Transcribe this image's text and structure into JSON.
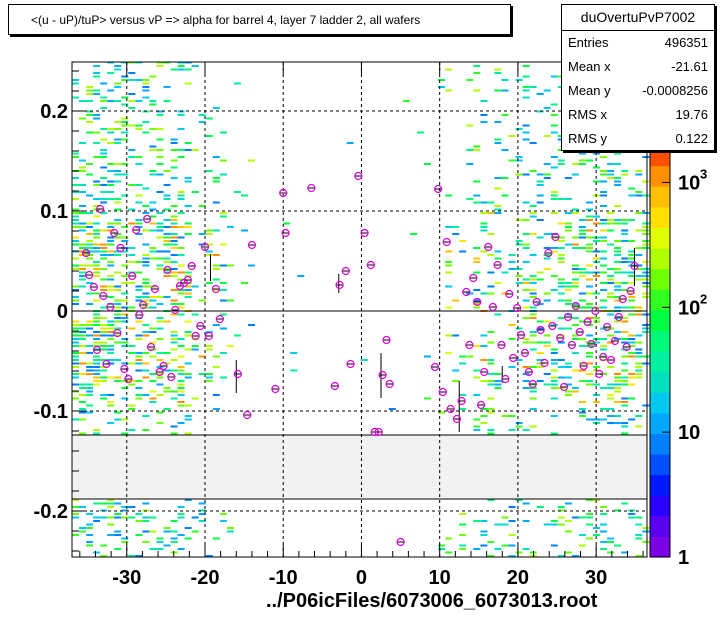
{
  "title": "<(u - uP)/tuP> versus  vP => alpha for barrel 4, layer 7 ladder 2, all wafers",
  "stats": {
    "name": "duOvertuPvP7002",
    "rows": [
      {
        "key": "Entries",
        "value": "496351"
      },
      {
        "key": "Mean x",
        "value": "-21.61"
      },
      {
        "key": "Mean y",
        "value": "-0.0008256"
      },
      {
        "key": "RMS x",
        "value": "19.76"
      },
      {
        "key": "RMS y",
        "value": "0.122"
      }
    ]
  },
  "footer": "../P06icFiles/6073006_6073013.root",
  "colors": {
    "marker": "#e000e0",
    "band": "#f2f2f2",
    "palette": [
      "#7a00e6",
      "#5a00f0",
      "#2a00ff",
      "#0018ff",
      "#0050ff",
      "#0080ff",
      "#00a8ff",
      "#00c8f0",
      "#00e0c0",
      "#00f0a0",
      "#00f878",
      "#00ff40",
      "#30ff20",
      "#70ff00",
      "#b0ff00",
      "#e0ff00",
      "#ffe000",
      "#ffc000",
      "#ff9000",
      "#ff5000"
    ]
  },
  "chart_data": {
    "type": "heatmap",
    "title": "<(u - uP)/tuP> versus  vP => alpha for barrel 4, layer 7 ladder 2, all wafers",
    "xlabel": "../P06icFiles/6073006_6073013.root",
    "ylabel": "",
    "xlim": [
      -37,
      36.5
    ],
    "ylim": [
      -0.246,
      0.249
    ],
    "x_ticks": [
      -30,
      -20,
      -10,
      0,
      10,
      20,
      30
    ],
    "x_tick_labels": [
      "-30",
      "-20",
      "-10",
      "0",
      "10",
      "20",
      "30"
    ],
    "y_ticks": [
      -0.2,
      -0.1,
      0,
      0.1,
      0.2
    ],
    "y_tick_labels": [
      "-0.2",
      "-0.1",
      "0",
      "0.1",
      "0.2"
    ],
    "grid": true,
    "empty_band_y": [
      -0.188,
      -0.124
    ],
    "colorbar": {
      "scale": "log",
      "tick_labels": [
        "1",
        "10",
        "10",
        "10"
      ],
      "tick_exponents": [
        "",
        "",
        "2",
        "3"
      ]
    },
    "profile_points": [
      {
        "x": -35.2,
        "y": 0.058
      },
      {
        "x": -34.8,
        "y": 0.036
      },
      {
        "x": -34.2,
        "y": 0.024
      },
      {
        "x": -33.8,
        "y": -0.039
      },
      {
        "x": -33.4,
        "y": 0.102
      },
      {
        "x": -33.0,
        "y": 0.015
      },
      {
        "x": -32.6,
        "y": -0.053
      },
      {
        "x": -32.1,
        "y": 0.004
      },
      {
        "x": -31.6,
        "y": 0.078
      },
      {
        "x": -31.2,
        "y": -0.022
      },
      {
        "x": -30.8,
        "y": 0.063
      },
      {
        "x": -30.3,
        "y": -0.058
      },
      {
        "x": -29.8,
        "y": -0.068
      },
      {
        "x": -29.3,
        "y": 0.035
      },
      {
        "x": -28.8,
        "y": 0.081
      },
      {
        "x": -28.4,
        "y": -0.004
      },
      {
        "x": -27.9,
        "y": 0.006
      },
      {
        "x": -27.4,
        "y": 0.092
      },
      {
        "x": -26.9,
        "y": -0.036
      },
      {
        "x": -26.4,
        "y": 0.022
      },
      {
        "x": -25.8,
        "y": -0.061
      },
      {
        "x": -25.3,
        "y": -0.055
      },
      {
        "x": -24.8,
        "y": 0.041
      },
      {
        "x": -24.3,
        "y": -0.066
      },
      {
        "x": -23.8,
        "y": 0.001
      },
      {
        "x": -23.2,
        "y": 0.025
      },
      {
        "x": -22.7,
        "y": 0.028
      },
      {
        "x": -22.2,
        "y": 0.031
      },
      {
        "x": -21.7,
        "y": 0.045
      },
      {
        "x": -21.2,
        "y": -0.025
      },
      {
        "x": -20.6,
        "y": -0.015
      },
      {
        "x": -20.0,
        "y": 0.064
      },
      {
        "x": -19.5,
        "y": -0.025
      },
      {
        "x": -18.6,
        "y": 0.022
      },
      {
        "x": -18.1,
        "y": -0.008
      },
      {
        "x": -15.8,
        "y": -0.063
      },
      {
        "x": -14.6,
        "y": -0.104
      },
      {
        "x": -14.0,
        "y": 0.066
      },
      {
        "x": -11.0,
        "y": -0.078
      },
      {
        "x": -10.0,
        "y": 0.118
      },
      {
        "x": -9.7,
        "y": 0.078
      },
      {
        "x": -6.4,
        "y": 0.123
      },
      {
        "x": -3.4,
        "y": -0.075
      },
      {
        "x": -2.8,
        "y": 0.026
      },
      {
        "x": -2.0,
        "y": 0.04
      },
      {
        "x": -1.4,
        "y": -0.053
      },
      {
        "x": -0.4,
        "y": 0.135
      },
      {
        "x": 0.4,
        "y": 0.078
      },
      {
        "x": 1.2,
        "y": 0.046
      },
      {
        "x": 1.7,
        "y": -0.121
      },
      {
        "x": 2.2,
        "y": -0.121
      },
      {
        "x": 2.7,
        "y": -0.064
      },
      {
        "x": 3.2,
        "y": -0.029
      },
      {
        "x": 3.6,
        "y": -0.073
      },
      {
        "x": 5.0,
        "y": -0.231
      },
      {
        "x": 9.4,
        "y": -0.056
      },
      {
        "x": 9.8,
        "y": 0.122
      },
      {
        "x": 10.4,
        "y": -0.081
      },
      {
        "x": 10.9,
        "y": 0.069
      },
      {
        "x": 11.4,
        "y": -0.098
      },
      {
        "x": 12.2,
        "y": -0.108
      },
      {
        "x": 12.8,
        "y": -0.09
      },
      {
        "x": 13.4,
        "y": 0.019
      },
      {
        "x": 13.8,
        "y": -0.034
      },
      {
        "x": 14.3,
        "y": 0.033
      },
      {
        "x": 14.8,
        "y": 0.009
      },
      {
        "x": 15.3,
        "y": -0.094
      },
      {
        "x": 15.7,
        "y": -0.061
      },
      {
        "x": 16.2,
        "y": 0.064
      },
      {
        "x": 16.8,
        "y": 0.004
      },
      {
        "x": 17.4,
        "y": 0.046
      },
      {
        "x": 17.9,
        "y": -0.034
      },
      {
        "x": 18.4,
        "y": -0.068
      },
      {
        "x": 18.9,
        "y": 0.017
      },
      {
        "x": 19.4,
        "y": -0.047
      },
      {
        "x": 19.9,
        "y": 0.003
      },
      {
        "x": 20.4,
        "y": -0.024
      },
      {
        "x": 20.9,
        "y": -0.042
      },
      {
        "x": 21.4,
        "y": -0.061
      },
      {
        "x": 21.9,
        "y": -0.073
      },
      {
        "x": 22.4,
        "y": 0.009
      },
      {
        "x": 22.9,
        "y": -0.019
      },
      {
        "x": 23.4,
        "y": -0.052
      },
      {
        "x": 23.9,
        "y": 0.058
      },
      {
        "x": 24.4,
        "y": -0.015
      },
      {
        "x": 24.8,
        "y": 0.074
      },
      {
        "x": 25.4,
        "y": -0.027
      },
      {
        "x": 25.9,
        "y": -0.076
      },
      {
        "x": 26.4,
        "y": -0.006
      },
      {
        "x": 26.9,
        "y": -0.034
      },
      {
        "x": 27.4,
        "y": 0.005
      },
      {
        "x": 27.9,
        "y": -0.021
      },
      {
        "x": 28.4,
        "y": -0.055
      },
      {
        "x": 28.9,
        "y": -0.011
      },
      {
        "x": 29.4,
        "y": -0.033
      },
      {
        "x": 29.9,
        "y": 0.0
      },
      {
        "x": 30.4,
        "y": -0.063
      },
      {
        "x": 30.9,
        "y": -0.046
      },
      {
        "x": 31.4,
        "y": -0.016
      },
      {
        "x": 31.9,
        "y": -0.049
      },
      {
        "x": 32.4,
        "y": -0.03
      },
      {
        "x": 32.9,
        "y": -0.006
      },
      {
        "x": 33.4,
        "y": 0.012
      },
      {
        "x": 33.9,
        "y": -0.036
      },
      {
        "x": 34.4,
        "y": 0.02
      },
      {
        "x": 34.9,
        "y": 0.045
      }
    ],
    "error_bars": [
      {
        "x": -16.0,
        "y_low": -0.082,
        "y_high": -0.049
      },
      {
        "x": -2.9,
        "y_low": 0.018,
        "y_high": 0.037
      },
      {
        "x": 2.5,
        "y_low": -0.087,
        "y_high": -0.042
      },
      {
        "x": 12.5,
        "y_low": -0.121,
        "y_high": -0.07
      },
      {
        "x": 18.0,
        "y_low": -0.072,
        "y_high": -0.055
      },
      {
        "x": 34.9,
        "y_low": 0.025,
        "y_high": 0.063
      },
      {
        "x": -19.3,
        "y_low": 0.03,
        "y_high": 0.057
      }
    ]
  }
}
